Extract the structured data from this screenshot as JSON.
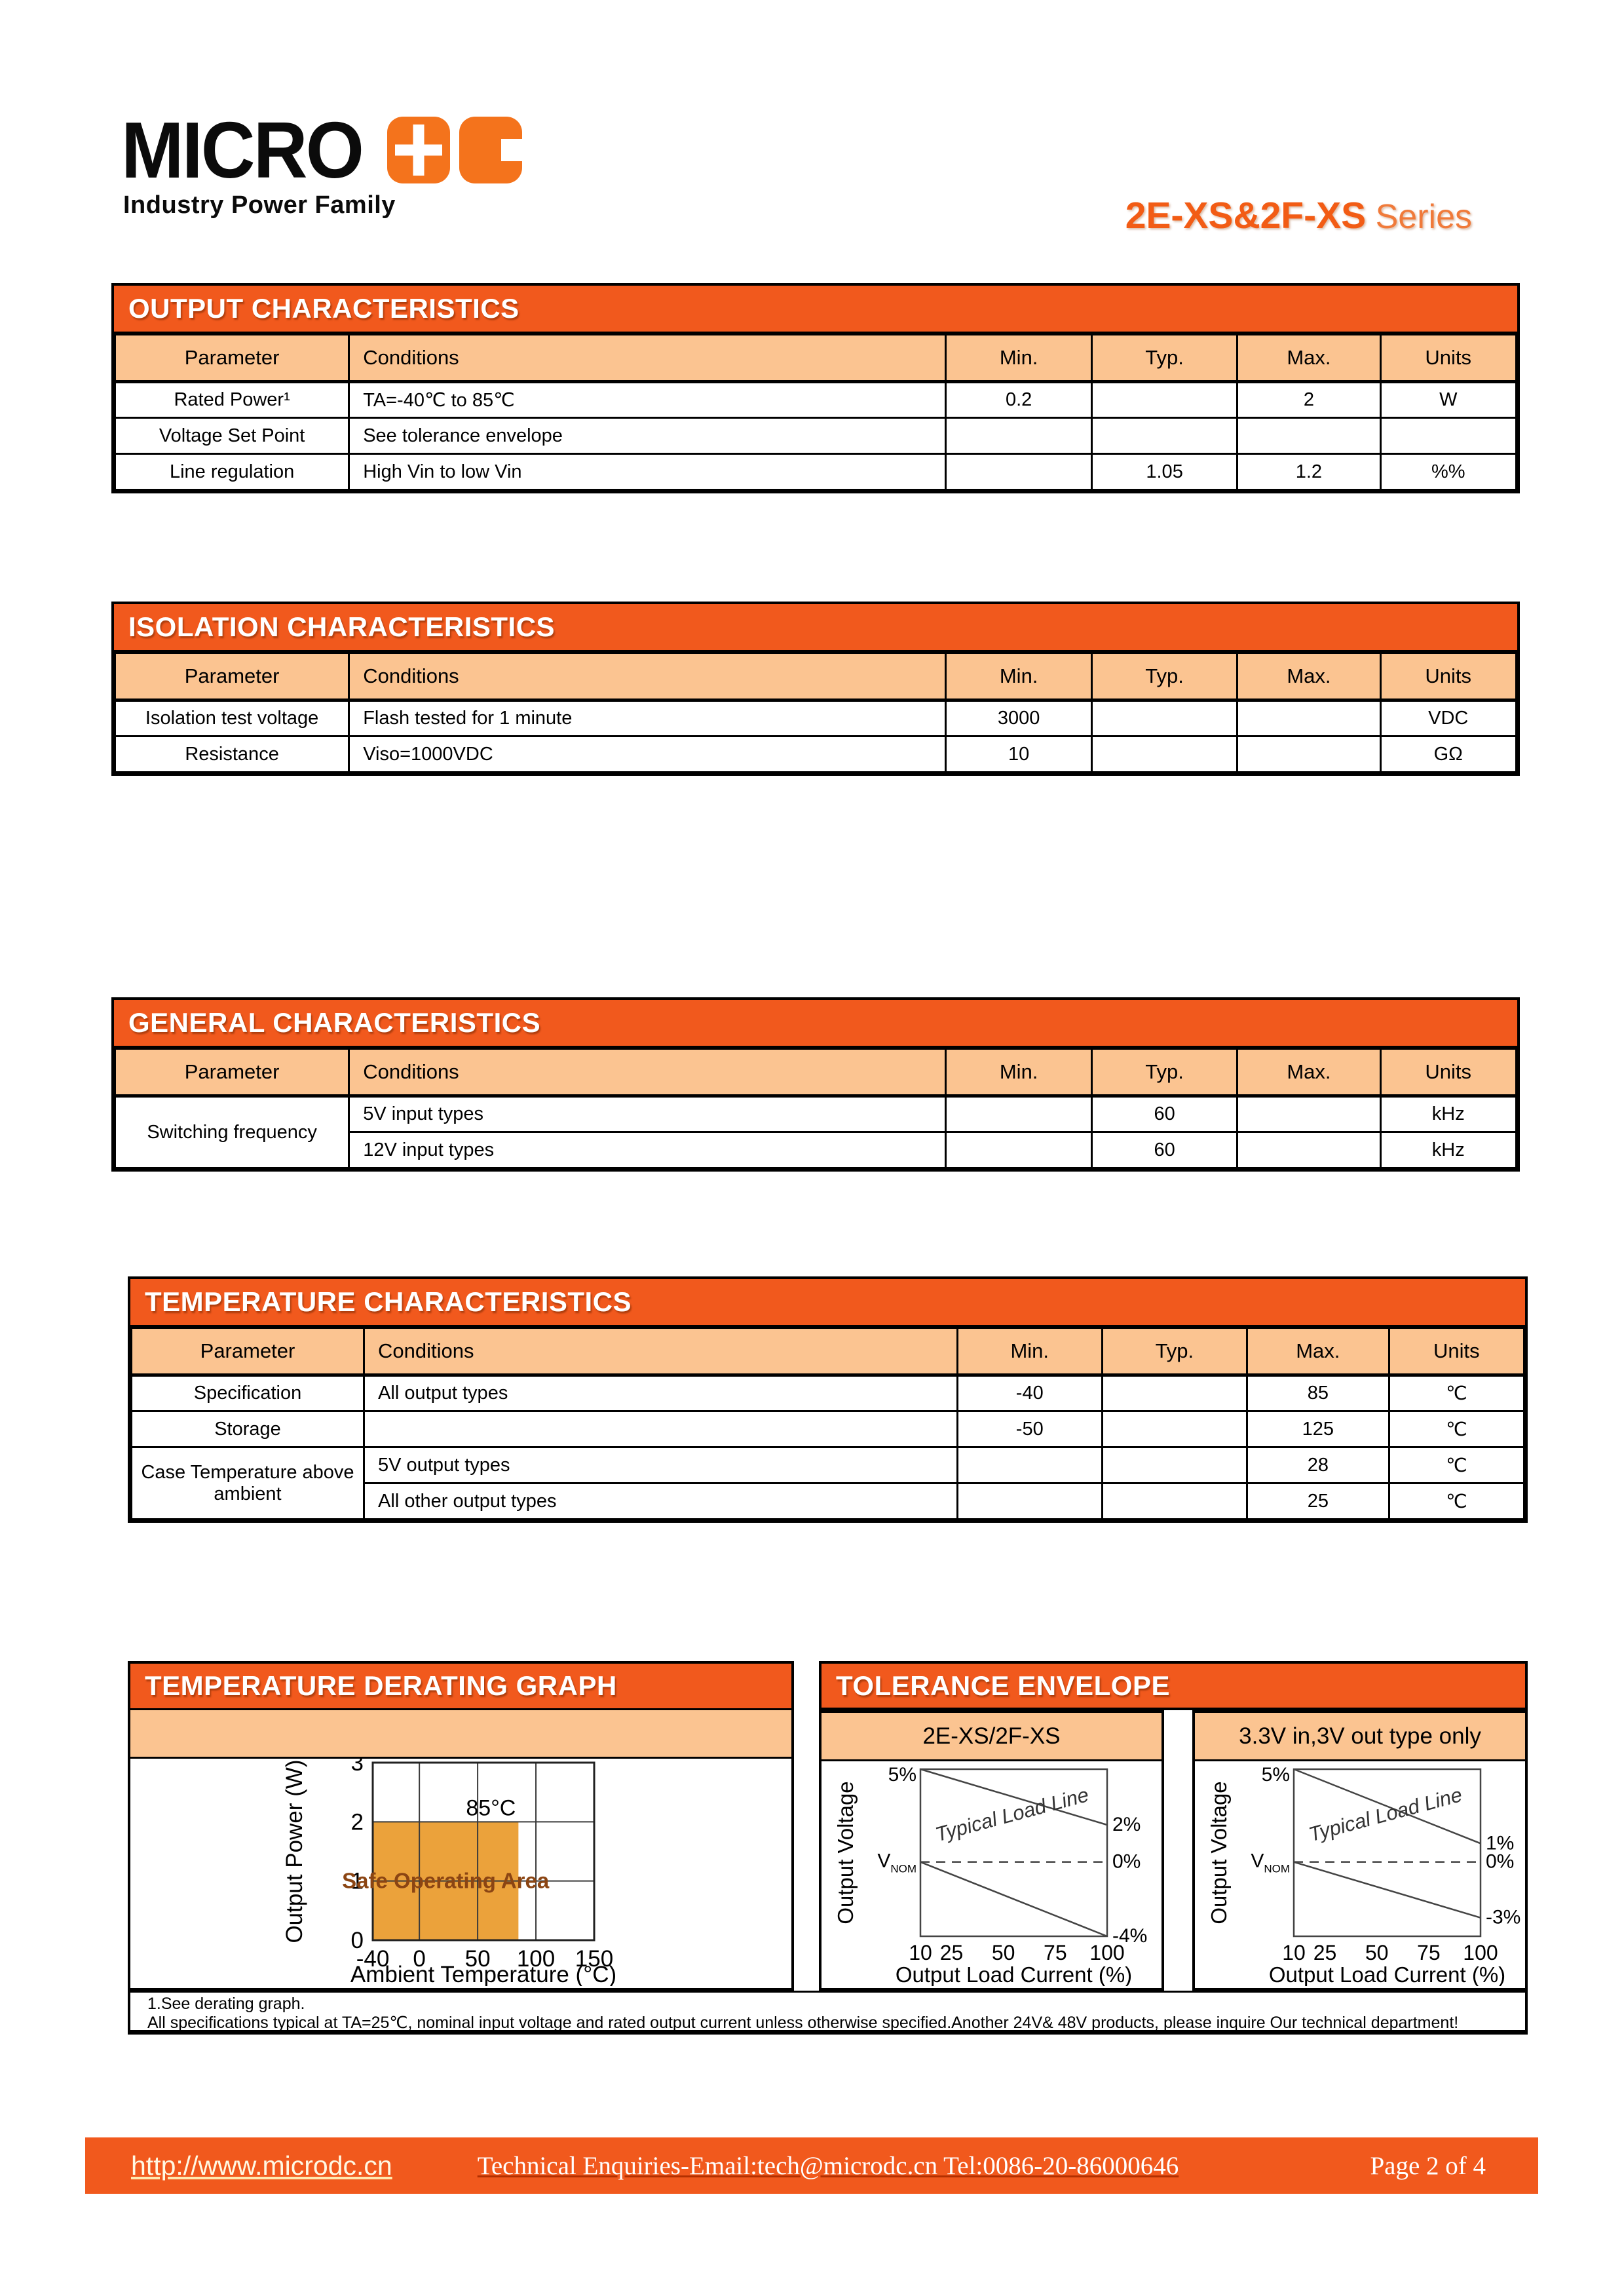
{
  "header": {
    "logo": {
      "brand": "MICRO",
      "brand_suffix_letter": "C",
      "tagline": "Industry Power Family"
    },
    "series": {
      "name": "2E-XS&2F-XS",
      "suffix": " Series"
    }
  },
  "table_headers": [
    "Parameter",
    "Conditions",
    "Min.",
    "Typ.",
    "Max.",
    "Units"
  ],
  "tables": [
    {
      "id": "output-characteristics",
      "title": "OUTPUT CHARACTERISTICS",
      "rows": [
        [
          {
            "text": "Rated Power¹"
          },
          {
            "text": "TA=-40℃  to 85℃"
          },
          {
            "text": "0.2"
          },
          {
            "text": ""
          },
          {
            "text": "2"
          },
          {
            "text": "W"
          }
        ],
        [
          {
            "text": "Voltage Set Point"
          },
          {
            "text": "See tolerance envelope"
          },
          {
            "text": ""
          },
          {
            "text": ""
          },
          {
            "text": ""
          },
          {
            "text": ""
          }
        ],
        [
          {
            "text": "Line regulation"
          },
          {
            "text": "High Vin to low Vin"
          },
          {
            "text": ""
          },
          {
            "text": "1.05"
          },
          {
            "text": "1.2"
          },
          {
            "text": "%%"
          }
        ]
      ]
    },
    {
      "id": "isolation-characteristics",
      "title": "ISOLATION CHARACTERISTICS",
      "rows": [
        [
          {
            "text": "Isolation test voltage"
          },
          {
            "text": "Flash tested for 1 minute"
          },
          {
            "text": "3000"
          },
          {
            "text": ""
          },
          {
            "text": ""
          },
          {
            "text": "VDC"
          }
        ],
        [
          {
            "text": "Resistance"
          },
          {
            "text": "Viso=1000VDC"
          },
          {
            "text": "10"
          },
          {
            "text": ""
          },
          {
            "text": ""
          },
          {
            "text": "GΩ"
          }
        ]
      ]
    },
    {
      "id": "general-characteristics",
      "title": "GENERAL CHARACTERISTICS",
      "rows": [
        [
          {
            "text": "Switching frequency",
            "rowspan": 2
          },
          {
            "text": "5V input types"
          },
          {
            "text": ""
          },
          {
            "text": "60"
          },
          {
            "text": ""
          },
          {
            "text": "kHz"
          }
        ],
        [
          null,
          {
            "text": "12V input types"
          },
          {
            "text": ""
          },
          {
            "text": "60"
          },
          {
            "text": ""
          },
          {
            "text": "kHz"
          }
        ]
      ]
    },
    {
      "id": "temperature-characteristics",
      "title": "TEMPERATURE CHARACTERISTICS",
      "rows": [
        [
          {
            "text": "Specification"
          },
          {
            "text": "All output types"
          },
          {
            "text": "-40"
          },
          {
            "text": ""
          },
          {
            "text": "85"
          },
          {
            "text": "℃"
          }
        ],
        [
          {
            "text": "Storage"
          },
          {
            "text": ""
          },
          {
            "text": "-50"
          },
          {
            "text": ""
          },
          {
            "text": "125"
          },
          {
            "text": "℃"
          }
        ],
        [
          {
            "text": "Case Temperature above ambient",
            "rowspan": 2
          },
          {
            "text": "5V output types"
          },
          {
            "text": ""
          },
          {
            "text": ""
          },
          {
            "text": "28"
          },
          {
            "text": "℃"
          }
        ],
        [
          null,
          {
            "text": "All other output types"
          },
          {
            "text": ""
          },
          {
            "text": ""
          },
          {
            "text": "25"
          },
          {
            "text": "℃"
          }
        ]
      ]
    }
  ],
  "sections": {
    "derating": {
      "title": "TEMPERATURE DERATING GRAPH"
    },
    "tolerance": {
      "title": "TOLERANCE ENVELOPE",
      "panel_left_label": "2E-XS/2F-XS",
      "panel_right_label": "3.3V in,3V out type only"
    }
  },
  "footnotes": [
    "1.See derating graph.",
    "All specifications typical at TA=25℃, nominal input voltage and rated output current unless otherwise specified.Another 24V& 48V products, please inquire Our technical department!"
  ],
  "footer": {
    "url": "http://www.microdc.cn",
    "contact": "Technical Enquiries-Email:tech@microdc.cn Tel:0086-20-86000646",
    "page_label": "Page 2 of 4"
  },
  "colors": {
    "orange": "#f1591d",
    "peach": "#fbc491",
    "safe_area_fill": "#eba23b",
    "soa_text": "#8b4513",
    "chart_line": "#444444"
  },
  "chart_data": [
    {
      "id": "temperature-derating",
      "type": "area",
      "title": "TEMPERATURE DERATING GRAPH",
      "xlabel": "Ambient Temperature (°C)",
      "ylabel": "Output Power (W)",
      "xlim": [
        -40,
        150
      ],
      "ylim": [
        0,
        3
      ],
      "xticks": [
        -40,
        0,
        50,
        100,
        150
      ],
      "yticks": [
        0,
        1,
        2,
        3
      ],
      "grid": true,
      "safe_operating_area": {
        "temp_range_c": [
          -40,
          85
        ],
        "power_range_w": [
          0,
          2
        ]
      },
      "area_label": "Safe Operating Area",
      "annotation": {
        "text": "85°C",
        "x": 85,
        "y": 2.15
      }
    },
    {
      "id": "tolerance-envelope-2e-xs-2f-xs",
      "type": "line",
      "title": "2E-XS/2F-XS",
      "xlabel": "Output Load Current (%)",
      "ylabel": "Output Voltage",
      "xlim": [
        10,
        100
      ],
      "ylim": [
        -4,
        5
      ],
      "xticks": [
        10,
        25,
        50,
        75,
        100
      ],
      "series": [
        {
          "name": "upper-tolerance-limit",
          "x": [
            10,
            100
          ],
          "y": [
            5,
            2
          ]
        },
        {
          "name": "nominal-typical-load-line",
          "x": [
            10,
            100
          ],
          "y": [
            0,
            0
          ],
          "dashed": true
        },
        {
          "name": "lower-tolerance-limit",
          "x": [
            10,
            100
          ],
          "y": [
            0,
            -4
          ]
        }
      ],
      "line_label": "Typical Load Line",
      "left_labels": [
        {
          "text": "5%",
          "y": 5
        },
        {
          "base": "V",
          "sub": "NOM",
          "y": 0
        }
      ],
      "right_labels": [
        {
          "text": "2%",
          "y": 2
        },
        {
          "text": "0%",
          "y": 0
        },
        {
          "text": "-4%",
          "y": -4
        }
      ]
    },
    {
      "id": "tolerance-envelope-3v3-in-3v-out",
      "type": "line",
      "title": "3.3V in,3V out type only",
      "xlabel": "Output Load Current (%)",
      "ylabel": "Output Voltage",
      "xlim": [
        10,
        100
      ],
      "ylim": [
        -4,
        5
      ],
      "xticks": [
        10,
        25,
        50,
        75,
        100
      ],
      "series": [
        {
          "name": "upper-tolerance-limit",
          "x": [
            10,
            100
          ],
          "y": [
            5,
            1
          ]
        },
        {
          "name": "nominal-typical-load-line",
          "x": [
            10,
            100
          ],
          "y": [
            0,
            0
          ],
          "dashed": true
        },
        {
          "name": "lower-tolerance-limit",
          "x": [
            10,
            100
          ],
          "y": [
            0,
            -3
          ]
        }
      ],
      "line_label": "Typical Load Line",
      "left_labels": [
        {
          "text": "5%",
          "y": 5
        },
        {
          "base": "V",
          "sub": "NOM",
          "y": 0
        }
      ],
      "right_labels": [
        {
          "text": "1%",
          "y": 1
        },
        {
          "text": "0%",
          "y": 0
        },
        {
          "text": "-3%",
          "y": -3
        }
      ]
    }
  ]
}
